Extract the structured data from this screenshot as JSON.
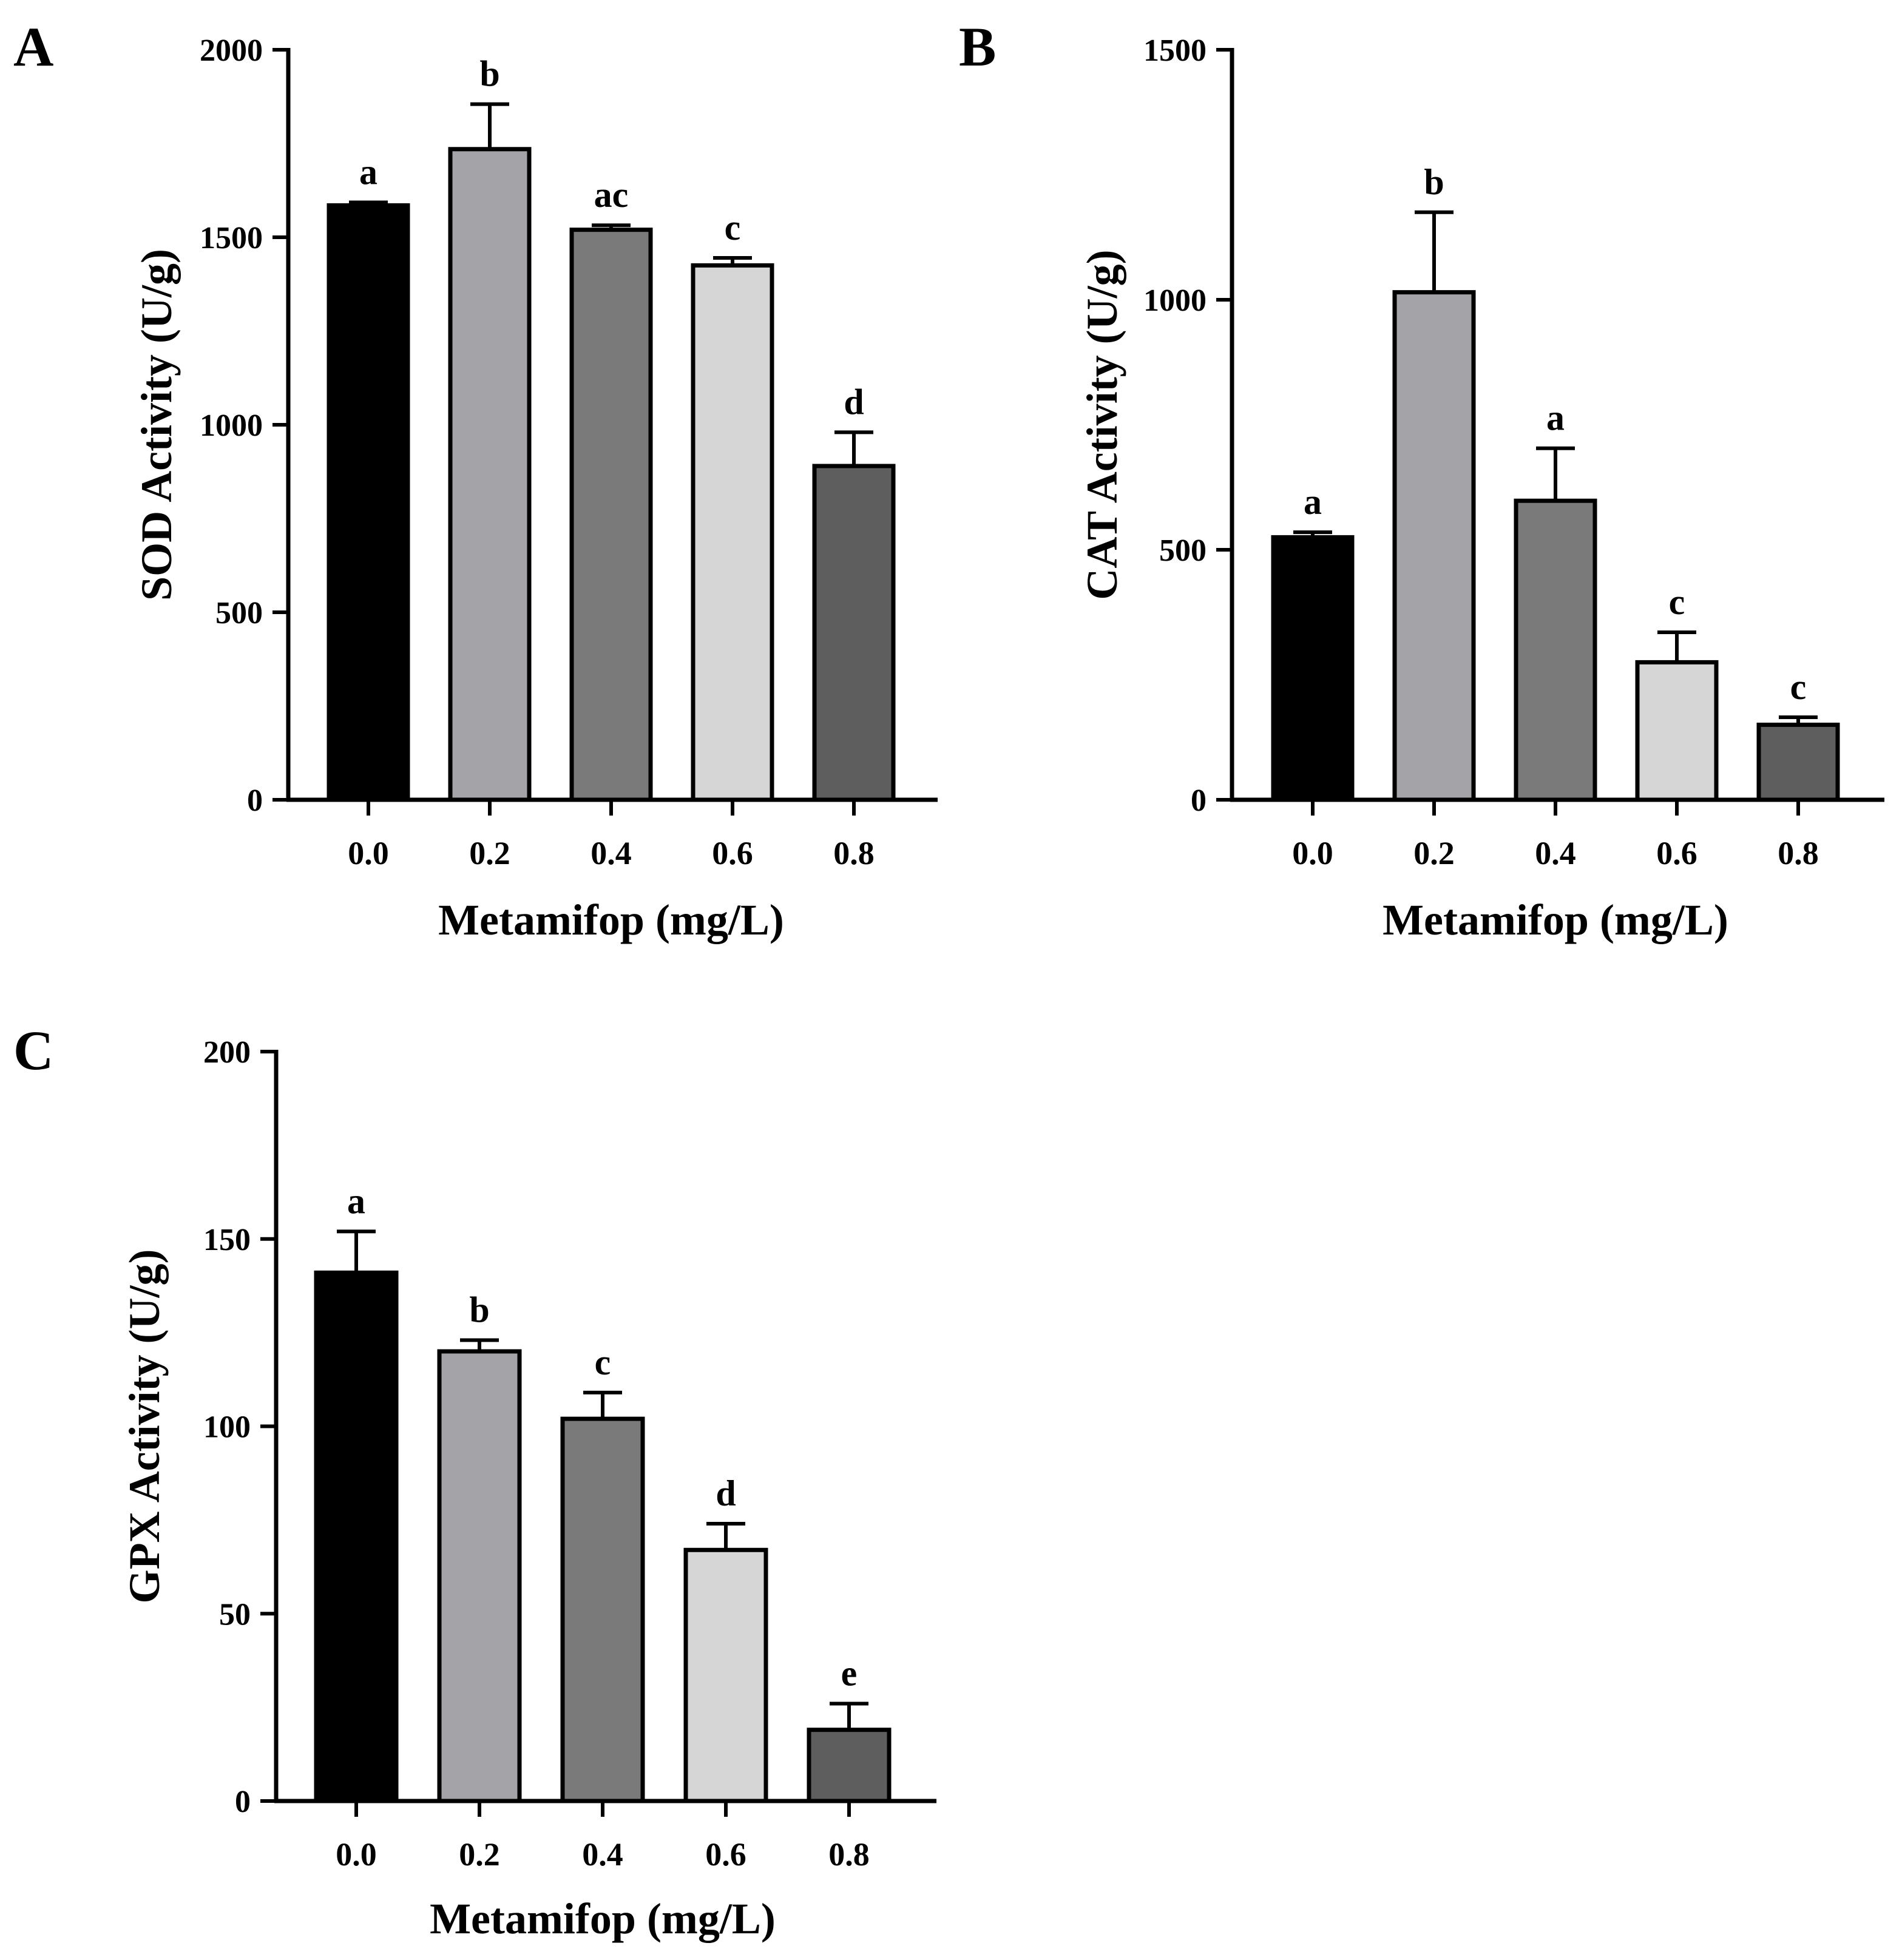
{
  "chart_data": [
    {
      "panel": "A",
      "type": "bar",
      "title": "",
      "xlabel": "Metamifop (mg/L)",
      "ylabel": "SOD Activity (U/g)",
      "ylim": [
        0,
        2000
      ],
      "yticks": [
        0,
        500,
        1000,
        1500,
        2000
      ],
      "categories": [
        "0.0",
        "0.2",
        "0.4",
        "0.6",
        "0.8"
      ],
      "values": [
        1585,
        1735,
        1520,
        1425,
        890
      ],
      "errors": [
        8,
        120,
        12,
        20,
        90
      ],
      "significance": [
        "a",
        "b",
        "ac",
        "c",
        "d"
      ],
      "bar_colors": [
        "#000000",
        "#a3a3a8",
        "#7a7a7a",
        "#d6d6d6",
        "#5e5e5e"
      ]
    },
    {
      "panel": "B",
      "type": "bar",
      "title": "",
      "xlabel": "Metamifop (mg/L)",
      "ylabel": "CAT Activity (U/g)",
      "ylim": [
        0,
        1500
      ],
      "yticks": [
        0,
        500,
        1000,
        1500
      ],
      "categories": [
        "0.0",
        "0.2",
        "0.4",
        "0.6",
        "0.8"
      ],
      "values": [
        525,
        1015,
        598,
        275,
        150
      ],
      "errors": [
        10,
        160,
        105,
        60,
        15
      ],
      "significance": [
        "a",
        "b",
        "a",
        "c",
        "c"
      ],
      "bar_colors": [
        "#000000",
        "#a3a3a8",
        "#7a7a7a",
        "#d6d6d6",
        "#5e5e5e"
      ]
    },
    {
      "panel": "C",
      "type": "bar",
      "title": "",
      "xlabel": "Metamifop (mg/L)",
      "ylabel": "GPX Activity (U/g)",
      "ylim": [
        0,
        200
      ],
      "yticks": [
        0,
        50,
        100,
        150,
        200
      ],
      "categories": [
        "0.0",
        "0.2",
        "0.4",
        "0.6",
        "0.8"
      ],
      "values": [
        141,
        120,
        102,
        67,
        19
      ],
      "errors": [
        11,
        3,
        7,
        7,
        7
      ],
      "significance": [
        "a",
        "b",
        "c",
        "d",
        "e"
      ],
      "bar_colors": [
        "#000000",
        "#a3a3a8",
        "#7a7a7a",
        "#d6d6d6",
        "#5e5e5e"
      ]
    }
  ]
}
